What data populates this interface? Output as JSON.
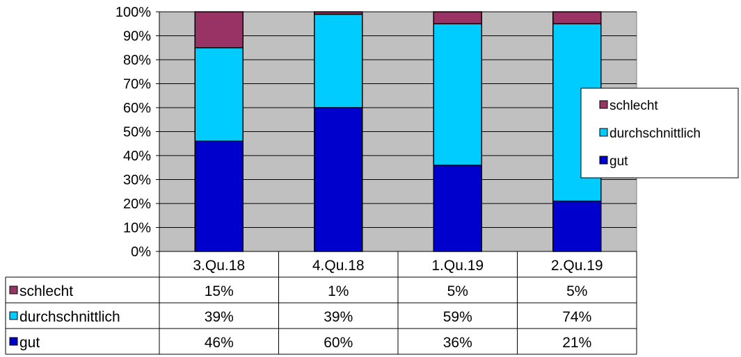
{
  "chart_data": {
    "type": "bar",
    "stacked": true,
    "percent": true,
    "categories": [
      "3.Qu.18",
      "4.Qu.18",
      "1.Qu.19",
      "2.Qu.19"
    ],
    "series": [
      {
        "name": "schlecht",
        "values": [
          15,
          1,
          5,
          5
        ],
        "labels": [
          "15%",
          "1%",
          "5%",
          "5%"
        ],
        "color": "#993366"
      },
      {
        "name": "durchschnittlich",
        "values": [
          39,
          39,
          59,
          74
        ],
        "labels": [
          "39%",
          "39%",
          "59%",
          "74%"
        ],
        "color": "#00ccff"
      },
      {
        "name": "gut",
        "values": [
          46,
          60,
          36,
          21
        ],
        "labels": [
          "46%",
          "60%",
          "36%",
          "21%"
        ],
        "color": "#0000cc"
      }
    ],
    "ylim": [
      0,
      100
    ],
    "y_ticks": [
      "0%",
      "10%",
      "20%",
      "30%",
      "40%",
      "50%",
      "60%",
      "70%",
      "80%",
      "90%",
      "100%"
    ],
    "grid": true,
    "plot_background": "#c0c0c0",
    "legend": {
      "placement": "right",
      "order": [
        "schlecht",
        "durchschnittlich",
        "gut"
      ]
    },
    "data_table": true
  }
}
